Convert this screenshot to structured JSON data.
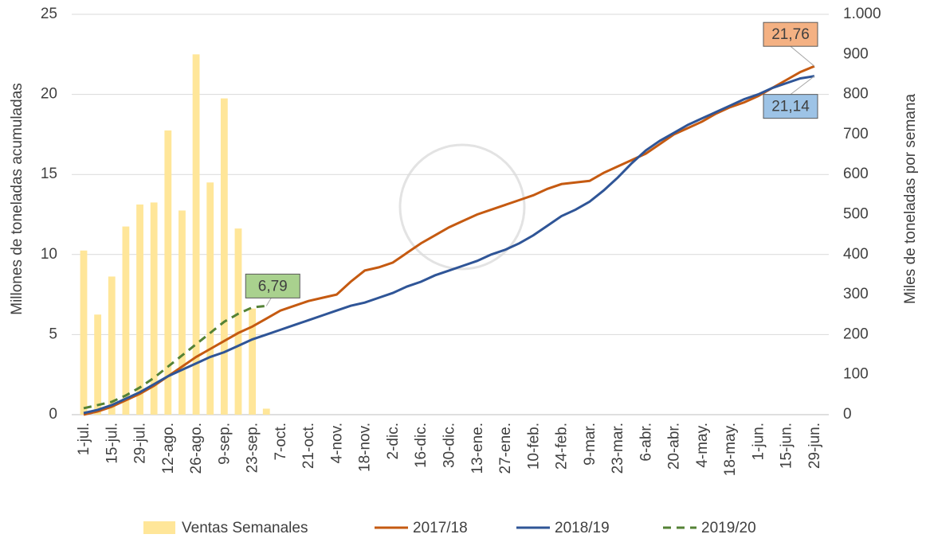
{
  "chart_data": {
    "type": "bar-line",
    "y_label": "Millones de toneladas acumuladas",
    "y2_label": "Miles de toneladas por semana",
    "categories": [
      "1-jul.",
      null,
      "15-jul.",
      null,
      "29-jul.",
      null,
      "12-ago.",
      null,
      "26-ago.",
      null,
      "9-sep.",
      null,
      "23-sep.",
      null,
      "7-oct.",
      null,
      "21-oct.",
      null,
      "4-nov.",
      null,
      "18-nov.",
      null,
      "2-dic.",
      null,
      "16-dic.",
      null,
      "30-dic.",
      null,
      "13-ene.",
      null,
      "27-ene.",
      null,
      "10-feb.",
      null,
      "24-feb.",
      null,
      "9-mar.",
      null,
      "23-mar.",
      null,
      "6-abr.",
      null,
      "20-abr.",
      null,
      "4-may.",
      null,
      "18-may.",
      null,
      "1-jun.",
      null,
      "15-jun.",
      null,
      "29-jun."
    ],
    "ylim": [
      0,
      25
    ],
    "yticks": [
      0,
      5,
      10,
      15,
      20,
      25
    ],
    "y2lim": [
      0,
      1000
    ],
    "y2ticks": [
      0,
      100,
      200,
      300,
      400,
      500,
      600,
      700,
      800,
      900,
      {
        "value": 1000,
        "label": "1.000"
      }
    ],
    "grid": true,
    "legend": "bottom",
    "series": [
      {
        "name": "Ventas Semanales",
        "type": "bar",
        "axis": "y2",
        "color": "#ffe699",
        "values": [
          410,
          250,
          345,
          470,
          525,
          530,
          710,
          510,
          900,
          580,
          790,
          465,
          265,
          15,
          null,
          null,
          null,
          null,
          null,
          null,
          null,
          null,
          null,
          null,
          null,
          null,
          null,
          null,
          null,
          null,
          null,
          null,
          null,
          null,
          null,
          null,
          null,
          null,
          null,
          null,
          null,
          null,
          null,
          null,
          null,
          null,
          null,
          null,
          null,
          null,
          null,
          null,
          null
        ]
      },
      {
        "name": "2017/18",
        "type": "line",
        "color": "#c55a11",
        "label_fill": "#f4b183",
        "values": [
          0,
          0.2,
          0.5,
          0.9,
          1.3,
          1.8,
          2.4,
          3.0,
          3.6,
          4.1,
          4.6,
          5.1,
          5.5,
          6.0,
          6.5,
          6.8,
          7.1,
          7.3,
          7.5,
          8.3,
          9.0,
          9.2,
          9.5,
          10.1,
          10.7,
          11.2,
          11.7,
          12.1,
          12.5,
          12.8,
          13.1,
          13.4,
          13.7,
          14.1,
          14.4,
          14.5,
          14.6,
          15.1,
          15.5,
          15.9,
          16.3,
          16.9,
          17.5,
          17.9,
          18.3,
          18.8,
          19.2,
          19.5,
          19.9,
          20.4,
          20.9,
          21.4,
          21.76
        ],
        "value_labels": [
          null,
          null,
          null,
          null,
          null,
          null,
          null,
          null,
          null,
          null,
          null,
          null,
          null,
          null,
          null,
          null,
          null,
          null,
          null,
          null,
          null,
          null,
          null,
          null,
          null,
          null,
          null,
          null,
          null,
          null,
          null,
          null,
          null,
          null,
          null,
          null,
          null,
          null,
          null,
          null,
          null,
          null,
          null,
          null,
          null,
          null,
          null,
          null,
          null,
          null,
          null,
          null,
          "21,76"
        ]
      },
      {
        "name": "2018/19",
        "type": "line",
        "color": "#2f5597",
        "label_fill": "#9dc3e6",
        "values": [
          0.1,
          0.3,
          0.6,
          1.0,
          1.4,
          1.9,
          2.4,
          2.8,
          3.2,
          3.6,
          3.9,
          4.3,
          4.7,
          5.0,
          5.3,
          5.6,
          5.9,
          6.2,
          6.5,
          6.8,
          7.0,
          7.3,
          7.6,
          8.0,
          8.3,
          8.7,
          9.0,
          9.3,
          9.6,
          10.0,
          10.3,
          10.7,
          11.2,
          11.8,
          12.4,
          12.8,
          13.3,
          14.0,
          14.8,
          15.7,
          16.5,
          17.1,
          17.6,
          18.1,
          18.5,
          18.9,
          19.3,
          19.7,
          20.0,
          20.4,
          20.7,
          21.0,
          21.14
        ],
        "value_labels": [
          null,
          null,
          null,
          null,
          null,
          null,
          null,
          null,
          null,
          null,
          null,
          null,
          null,
          null,
          null,
          null,
          null,
          null,
          null,
          null,
          null,
          null,
          null,
          null,
          null,
          null,
          null,
          null,
          null,
          null,
          null,
          null,
          null,
          null,
          null,
          null,
          null,
          null,
          null,
          null,
          null,
          null,
          null,
          null,
          null,
          null,
          null,
          null,
          null,
          null,
          null,
          null,
          "21,14"
        ]
      },
      {
        "name": "2019/20",
        "type": "line",
        "dashed": true,
        "color": "#548235",
        "label_fill": "#a9d18e",
        "values": [
          0.4,
          0.6,
          0.8,
          1.2,
          1.7,
          2.3,
          3.0,
          3.7,
          4.4,
          5.1,
          5.8,
          6.3,
          6.7,
          6.79,
          null,
          null,
          null,
          null,
          null,
          null,
          null,
          null,
          null,
          null,
          null,
          null,
          null,
          null,
          null,
          null,
          null,
          null,
          null,
          null,
          null,
          null,
          null,
          null,
          null,
          null,
          null,
          null,
          null,
          null,
          null,
          null,
          null,
          null,
          null,
          null,
          null,
          null,
          null
        ],
        "value_labels": [
          null,
          null,
          null,
          null,
          null,
          null,
          null,
          null,
          null,
          null,
          null,
          null,
          null,
          "6,79",
          null,
          null,
          null,
          null,
          null,
          null,
          null,
          null,
          null,
          null,
          null,
          null,
          null,
          null,
          null,
          null,
          null,
          null,
          null,
          null,
          null,
          null,
          null,
          null,
          null,
          null,
          null,
          null,
          null,
          null,
          null,
          null,
          null,
          null,
          null,
          null,
          null,
          null,
          null
        ]
      }
    ]
  }
}
